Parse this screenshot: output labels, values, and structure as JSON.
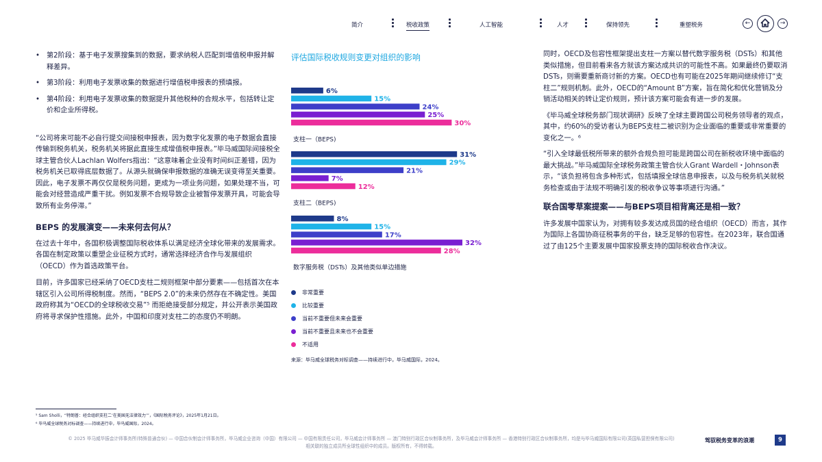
{
  "nav": {
    "items": [
      {
        "label": "简介"
      },
      {
        "label": "税收政策"
      },
      {
        "label": "人工智能"
      },
      {
        "label": "人才"
      },
      {
        "label": "保持领先"
      },
      {
        "label": "重塑税务"
      }
    ],
    "active_index": 1,
    "icons": [
      "prev-arrow-icon",
      "home-icon",
      "next-arrow-icon"
    ]
  },
  "left": {
    "bullets": [
      "第2阶段：基于电子发票搜集到的数据，要求纳税人匹配到增值税申报并解释差异。",
      "第3阶段：利用电子发票收集的数据进行增值税申报表的预填报。",
      "第4阶段：利用电子发票收集的数据提升其他税种的合规水平，包括转让定价和企业所得税。"
    ],
    "quote": "“公司将来可能不必自行提交间接税申报表，因为数字化发票的电子数据会直接传输到税务机关，税务机关将据此直接生成增值税申报表。”毕马威国际间接税全球主管合伙人Lachlan Wolfers指出：“这意味着企业没有时间纠正差错，因为税务机关已取得底层数据了。从源头就确保申报数据的准确无误变得至关重要。因此，电子发票不再仅仅是税务问题，更成为一项业务问题，如果处理不当，可能会对经营造成严重干扰。例如发票不合规导致企业被暂停发票开具，可能会导致所有业务停滞。”",
    "heading": "BEPS 的发展演变——未来何去何从？",
    "para1": "在过去十年中，各国积极调整国际税收体系以满足经济全球化带来的发展需求。各国在制定政策以重塑企业征税方式时，通常选择经济合作与发展组织（OECD）作为首选政策平台。",
    "para2": "目前，许多国家已经采纳了OECD支柱二规则框架中部分要素——包括首次在本辖区引入公司所得税制度。然而，“BEPS 2.0”的未来仍然存在不确定性。美国政府称其为“OECD的全球税收交易”⁵ 而拒绝接受部分规定，并公开表示美国政府将寻求保护性措施。此外，中国和印度对支柱二的态度仍不明朗。"
  },
  "chart_data": {
    "type": "bar",
    "orientation": "horizontal",
    "title": "评估国际税收规则变更对组织的影响",
    "groups": [
      {
        "label": "支柱一（BEPS)",
        "values": [
          6,
          15,
          24,
          25,
          30
        ]
      },
      {
        "label": "支柱二（BEPS)",
        "values": [
          31,
          29,
          21,
          7,
          12
        ]
      },
      {
        "label": "数字服务税（DSTs）及其他类似单边措施",
        "values": [
          8,
          15,
          17,
          32,
          28
        ]
      }
    ],
    "series": [
      {
        "name": "非常重要",
        "color": "#1e3a8a"
      },
      {
        "name": "比较重要",
        "color": "#1fb3e8"
      },
      {
        "name": "当前不重要但未来会重要",
        "color": "#3d3fc9"
      },
      {
        "name": "当前不重要且未来也不会重要",
        "color": "#7a1fd1"
      },
      {
        "name": "不适用",
        "color": "#ec2d9b"
      }
    ],
    "value_suffix": "%",
    "source": "来源：毕马威全球税务对标调查——持续进行中，毕马威国际，2024。"
  },
  "right": {
    "para1": "同时，OECD及包容性框架提出支柱一方案以替代数字服务税（DSTs）和其他类似措施，但目前看来各方就该方案达成共识的可能性不高。如果最终仍要取消DSTs，则需要重新商讨新的方案。OECD也有可能在2025年期间继续修订“支柱二”规则机制。此外，OECD的“Amount B”方案，旨在简化和优化营销及分销活动相关的转让定价规则，预计该方案可能会有进一步的发展。",
    "para2": "《毕马威全球税务部门现状调研》反映了全球主要跨国公司税务领导者的观点，其中，约60%的受访者认为BEPS支柱二被识别为企业面临的重要或非常重要的变化之一。⁶",
    "para3": "“引入全球最低税所带来的额外合规负担可能是跨国公司在新税收环境中面临的最大挑战。”毕马威国际全球税务政策主管合伙人Grant Wardell・Johnson表示，“该负担将包含多种形式，包括填报全球信息申报表，以及与税务机关就税务检查或由于法规不明确引发的税收争议等事项进行沟通。”",
    "heading": "联合国零草案提案——与BEPS项目相背离还是相一致？",
    "para4": "许多发展中国家认为，对拥有较多发达成员国的经合组织（OECD）而言，其作为国际上各国协商征税事务的平台，缺乏足够的包容性。在2023年，联合国通过了由125个主要发展中国家投票支持的国际税收合作决议。"
  },
  "footer": {
    "footnote5": "⁵ Sam Sholli，“特朗普：经合组织支柱二‘在美国无法律效力’”，《国际税务评论》，2025年1月21日。",
    "footnote6": "⁶ 毕马威全球税务对标调查——持续进行中，毕马威国际，2024。",
    "copyright": "© 2025 毕马威华振会计师事务所(特殊普通合伙) — 中国合伙制会计师事务所，毕马威企业咨询（中国）有限公司 — 中国有限责任公司，毕马威会计师事务所 — 澳门特别行政区合伙制事务所，及毕马威会计师事务所 — 香港特别行政区合伙制事务所，均是与毕马威国际有限公司(英国私营担保有限公司)相关联的独立成员所全球性组织中的成员。版权所有，不得转载。",
    "title": "驾驭税务变革的浪潮",
    "page": "9"
  }
}
